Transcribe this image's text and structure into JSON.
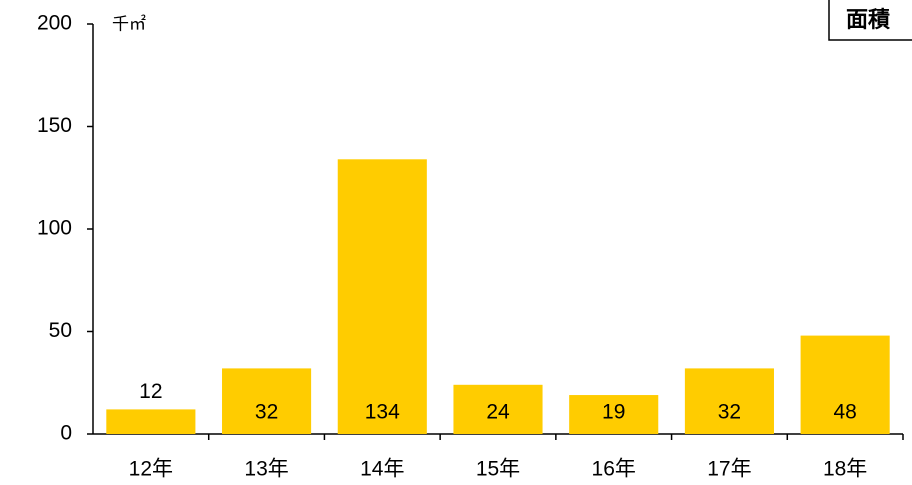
{
  "chart_data": {
    "type": "bar",
    "y_label": "千㎡",
    "categories": [
      "12年",
      "13年",
      "14年",
      "15年",
      "16年",
      "17年",
      "18年"
    ],
    "series": [
      {
        "name": "面積",
        "color": "#ffcc00",
        "values": [
          12,
          32,
          134,
          24,
          19,
          32,
          48
        ]
      }
    ],
    "ylim": [
      0,
      200
    ],
    "yticks": [
      0,
      50,
      100,
      150,
      200
    ],
    "grid": false,
    "legend": "top-right"
  }
}
